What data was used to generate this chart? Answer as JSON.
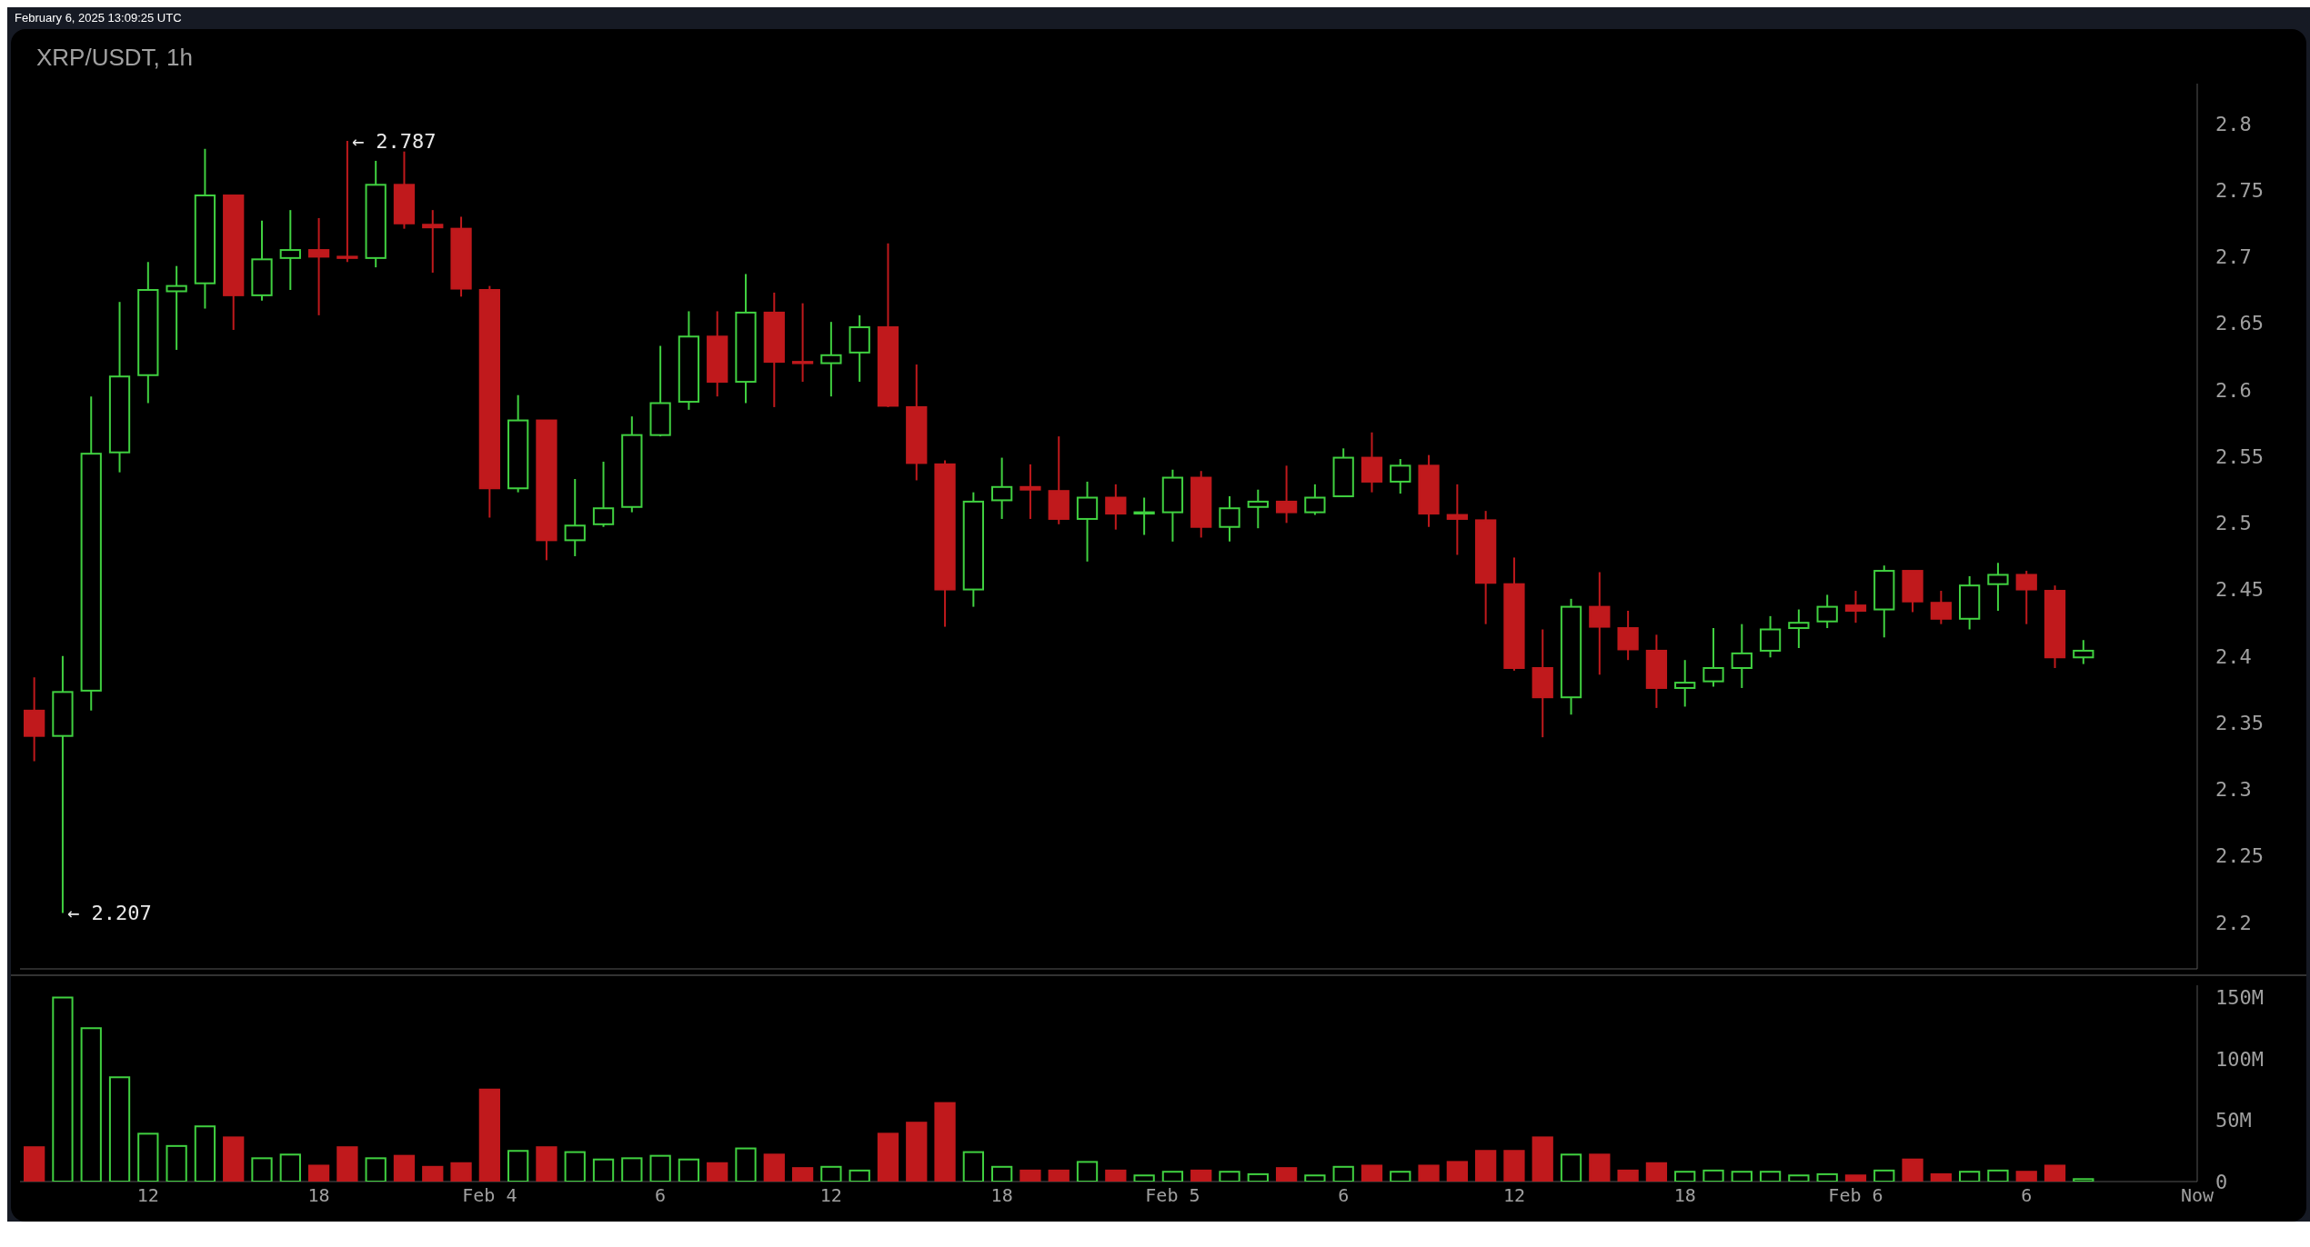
{
  "chart_data": [
    {
      "type": "candlestick",
      "title": "XRP/USDT, 1h",
      "annotations": [
        "February 6, 2025 13:09:25 UTC",
        {
          "text": "← 2.787",
          "x": "--02-03T19:00",
          "y": 2.787
        },
        {
          "text": "← 2.207",
          "x": "--02-03T09:00",
          "y": 2.207
        }
      ],
      "x": [
        "--02-03T08:00",
        "--02-03T09:00",
        "--02-03T10:00",
        "--02-03T11:00",
        "--02-03T12:00",
        "--02-03T13:00",
        "--02-03T14:00",
        "--02-03T15:00",
        "--02-03T16:00",
        "--02-03T17:00",
        "--02-03T18:00",
        "--02-03T19:00",
        "--02-03T20:00",
        "--02-03T21:00",
        "--02-03T22:00",
        "--02-03T23:00",
        "--02-04T00:00",
        "--02-04T01:00",
        "--02-04T02:00",
        "--02-04T03:00",
        "--02-04T04:00",
        "--02-04T05:00",
        "--02-04T06:00",
        "--02-04T07:00",
        "--02-04T08:00",
        "--02-04T09:00",
        "--02-04T10:00",
        "--02-04T11:00",
        "--02-04T12:00",
        "--02-04T13:00",
        "--02-04T14:00",
        "--02-04T15:00",
        "--02-04T16:00",
        "--02-04T17:00",
        "--02-04T18:00",
        "--02-04T19:00",
        "--02-04T20:00",
        "--02-04T21:00",
        "--02-04T22:00",
        "--02-04T23:00",
        "--02-05T00:00",
        "--02-05T01:00",
        "--02-05T02:00",
        "--02-05T03:00",
        "--02-05T04:00",
        "--02-05T05:00",
        "--02-05T06:00",
        "--02-05T07:00",
        "--02-05T08:00",
        "--02-05T09:00",
        "--02-05T10:00",
        "--02-05T11:00",
        "--02-05T12:00",
        "--02-05T13:00",
        "--02-05T14:00",
        "--02-05T15:00",
        "--02-05T16:00",
        "--02-05T17:00",
        "--02-05T18:00",
        "--02-05T19:00",
        "--02-05T20:00",
        "--02-05T21:00",
        "--02-05T22:00",
        "--02-05T23:00",
        "--02-06T00:00",
        "--02-06T01:00",
        "--02-06T02:00",
        "--02-06T03:00",
        "--02-06T04:00",
        "--02-06T05:00",
        "--02-06T06:00",
        "--02-06T07:00",
        "--02-06T08:00"
      ],
      "ohlc": [
        [
          2.359,
          2.384,
          2.321,
          2.34
        ],
        [
          2.34,
          2.4,
          2.207,
          2.373
        ],
        [
          2.374,
          2.595,
          2.359,
          2.552
        ],
        [
          2.553,
          2.666,
          2.538,
          2.61
        ],
        [
          2.611,
          2.696,
          2.59,
          2.675
        ],
        [
          2.674,
          2.693,
          2.63,
          2.678
        ],
        [
          2.68,
          2.781,
          2.661,
          2.746
        ],
        [
          2.746,
          2.746,
          2.645,
          2.671
        ],
        [
          2.671,
          2.727,
          2.667,
          2.698
        ],
        [
          2.699,
          2.735,
          2.675,
          2.705
        ],
        [
          2.705,
          2.729,
          2.656,
          2.7
        ],
        [
          2.7,
          2.787,
          2.696,
          2.699
        ],
        [
          2.699,
          2.772,
          2.692,
          2.754
        ],
        [
          2.754,
          2.779,
          2.721,
          2.725
        ],
        [
          2.724,
          2.735,
          2.688,
          2.722
        ],
        [
          2.721,
          2.73,
          2.67,
          2.676
        ],
        [
          2.675,
          2.678,
          2.504,
          2.526
        ],
        [
          2.526,
          2.596,
          2.523,
          2.577
        ],
        [
          2.577,
          2.577,
          2.472,
          2.487
        ],
        [
          2.487,
          2.533,
          2.475,
          2.498
        ],
        [
          2.499,
          2.546,
          2.497,
          2.511
        ],
        [
          2.512,
          2.58,
          2.508,
          2.566
        ],
        [
          2.566,
          2.633,
          2.565,
          2.59
        ],
        [
          2.591,
          2.659,
          2.585,
          2.64
        ],
        [
          2.64,
          2.659,
          2.595,
          2.606
        ],
        [
          2.606,
          2.687,
          2.59,
          2.658
        ],
        [
          2.658,
          2.673,
          2.587,
          2.621
        ],
        [
          2.621,
          2.665,
          2.606,
          2.62
        ],
        [
          2.62,
          2.651,
          2.595,
          2.626
        ],
        [
          2.628,
          2.656,
          2.606,
          2.647
        ],
        [
          2.647,
          2.71,
          2.587,
          2.588
        ],
        [
          2.587,
          2.619,
          2.532,
          2.545
        ],
        [
          2.544,
          2.547,
          2.422,
          2.45
        ],
        [
          2.45,
          2.523,
          2.437,
          2.516
        ],
        [
          2.517,
          2.549,
          2.503,
          2.527
        ],
        [
          2.527,
          2.544,
          2.503,
          2.525
        ],
        [
          2.524,
          2.565,
          2.499,
          2.503
        ],
        [
          2.503,
          2.531,
          2.471,
          2.519
        ],
        [
          2.519,
          2.529,
          2.495,
          2.507
        ],
        [
          2.507,
          2.519,
          2.491,
          2.508
        ],
        [
          2.508,
          2.54,
          2.486,
          2.534
        ],
        [
          2.534,
          2.539,
          2.489,
          2.497
        ],
        [
          2.497,
          2.52,
          2.486,
          2.511
        ],
        [
          2.512,
          2.525,
          2.496,
          2.516
        ],
        [
          2.516,
          2.543,
          2.5,
          2.508
        ],
        [
          2.508,
          2.529,
          2.506,
          2.519
        ],
        [
          2.52,
          2.556,
          2.52,
          2.549
        ],
        [
          2.549,
          2.568,
          2.523,
          2.531
        ],
        [
          2.531,
          2.548,
          2.522,
          2.543
        ],
        [
          2.543,
          2.551,
          2.497,
          2.507
        ],
        [
          2.506,
          2.529,
          2.476,
          2.503
        ],
        [
          2.502,
          2.509,
          2.424,
          2.455
        ],
        [
          2.454,
          2.474,
          2.389,
          2.391
        ],
        [
          2.391,
          2.42,
          2.339,
          2.369
        ],
        [
          2.369,
          2.443,
          2.356,
          2.437
        ],
        [
          2.437,
          2.463,
          2.386,
          2.422
        ],
        [
          2.421,
          2.434,
          2.397,
          2.405
        ],
        [
          2.404,
          2.416,
          2.361,
          2.376
        ],
        [
          2.376,
          2.397,
          2.362,
          2.38
        ],
        [
          2.381,
          2.421,
          2.377,
          2.391
        ],
        [
          2.391,
          2.424,
          2.376,
          2.402
        ],
        [
          2.404,
          2.43,
          2.399,
          2.42
        ],
        [
          2.421,
          2.435,
          2.406,
          2.425
        ],
        [
          2.426,
          2.446,
          2.421,
          2.437
        ],
        [
          2.438,
          2.449,
          2.425,
          2.434
        ],
        [
          2.435,
          2.468,
          2.414,
          2.464
        ],
        [
          2.464,
          2.464,
          2.433,
          2.441
        ],
        [
          2.44,
          2.449,
          2.424,
          2.428
        ],
        [
          2.428,
          2.46,
          2.42,
          2.453
        ],
        [
          2.454,
          2.47,
          2.434,
          2.461
        ],
        [
          2.461,
          2.464,
          2.424,
          2.45
        ],
        [
          2.449,
          2.453,
          2.391,
          2.399
        ],
        [
          2.399,
          2.412,
          2.394,
          2.404
        ]
      ],
      "colors": [
        "#c0191c",
        "#40d040",
        "#40d040",
        "#40d040",
        "#40d040",
        "#40d040",
        "#40d040",
        "#c0191c",
        "#40d040",
        "#40d040",
        "#c0191c",
        "#c0191c",
        "#40d040",
        "#c0191c",
        "#c0191c",
        "#c0191c",
        "#c0191c",
        "#40d040",
        "#c0191c",
        "#40d040",
        "#40d040",
        "#40d040",
        "#40d040",
        "#40d040",
        "#c0191c",
        "#40d040",
        "#c0191c",
        "#c0191c",
        "#40d040",
        "#40d040",
        "#c0191c",
        "#c0191c",
        "#c0191c",
        "#40d040",
        "#40d040",
        "#c0191c",
        "#c0191c",
        "#40d040",
        "#c0191c",
        "#40d040",
        "#40d040",
        "#c0191c",
        "#40d040",
        "#40d040",
        "#c0191c",
        "#40d040",
        "#40d040",
        "#c0191c",
        "#40d040",
        "#c0191c",
        "#c0191c",
        "#c0191c",
        "#c0191c",
        "#c0191c",
        "#40d040",
        "#c0191c",
        "#c0191c",
        "#c0191c",
        "#40d040",
        "#40d040",
        "#40d040",
        "#40d040",
        "#40d040",
        "#40d040",
        "#c0191c",
        "#40d040",
        "#c0191c",
        "#c0191c",
        "#40d040",
        "#40d040",
        "#c0191c",
        "#c0191c",
        "#40d040"
      ],
      "xlim": [
        "--02-03T07:30",
        "--02-06T12:00"
      ],
      "ylim": [
        2.165,
        2.83
      ],
      "yticks": [
        2.2,
        2.25,
        2.3,
        2.35,
        2.4,
        2.45,
        2.5,
        2.55,
        2.6,
        2.65,
        2.7,
        2.75,
        2.8
      ],
      "tick_labels": "y"
    },
    {
      "type": "bar",
      "x": [
        "--02-03T08:00",
        "--02-03T09:00",
        "--02-03T10:00",
        "--02-03T11:00",
        "--02-03T12:00",
        "--02-03T13:00",
        "--02-03T14:00",
        "--02-03T15:00",
        "--02-03T16:00",
        "--02-03T17:00",
        "--02-03T18:00",
        "--02-03T19:00",
        "--02-03T20:00",
        "--02-03T21:00",
        "--02-03T22:00",
        "--02-03T23:00",
        "--02-04T00:00",
        "--02-04T01:00",
        "--02-04T02:00",
        "--02-04T03:00",
        "--02-04T04:00",
        "--02-04T05:00",
        "--02-04T06:00",
        "--02-04T07:00",
        "--02-04T08:00",
        "--02-04T09:00",
        "--02-04T10:00",
        "--02-04T11:00",
        "--02-04T12:00",
        "--02-04T13:00",
        "--02-04T14:00",
        "--02-04T15:00",
        "--02-04T16:00",
        "--02-04T17:00",
        "--02-04T18:00",
        "--02-04T19:00",
        "--02-04T20:00",
        "--02-04T21:00",
        "--02-04T22:00",
        "--02-04T23:00",
        "--02-05T00:00",
        "--02-05T01:00",
        "--02-05T02:00",
        "--02-05T03:00",
        "--02-05T04:00",
        "--02-05T05:00",
        "--02-05T06:00",
        "--02-05T07:00",
        "--02-05T08:00",
        "--02-05T09:00",
        "--02-05T10:00",
        "--02-05T11:00",
        "--02-05T12:00",
        "--02-05T13:00",
        "--02-05T14:00",
        "--02-05T15:00",
        "--02-05T16:00",
        "--02-05T17:00",
        "--02-05T18:00",
        "--02-05T19:00",
        "--02-05T20:00",
        "--02-05T21:00",
        "--02-05T22:00",
        "--02-05T23:00",
        "--02-06T00:00",
        "--02-06T01:00",
        "--02-06T02:00",
        "--02-06T03:00",
        "--02-06T04:00",
        "--02-06T05:00",
        "--02-06T06:00",
        "--02-06T07:00",
        "--02-06T08:00"
      ],
      "values": [
        28,
        150,
        125,
        85,
        39,
        29,
        45,
        36,
        19,
        22,
        13,
        28,
        19,
        21,
        12,
        15,
        75,
        25,
        28,
        24,
        18,
        19,
        21,
        18,
        15,
        27,
        22,
        11,
        12,
        9,
        39,
        48,
        64,
        24,
        12,
        9,
        9,
        16,
        9,
        5,
        8,
        9,
        8,
        6,
        11,
        5,
        12,
        13,
        8,
        13,
        16,
        25,
        25,
        36,
        22,
        22,
        9,
        15,
        8,
        9,
        8,
        8,
        5,
        6,
        5,
        9,
        18,
        6,
        8,
        9,
        8,
        13,
        2
      ],
      "colors": [
        "#c0191c",
        "#40d040",
        "#40d040",
        "#40d040",
        "#40d040",
        "#40d040",
        "#40d040",
        "#c0191c",
        "#40d040",
        "#40d040",
        "#c0191c",
        "#c0191c",
        "#40d040",
        "#c0191c",
        "#c0191c",
        "#c0191c",
        "#c0191c",
        "#40d040",
        "#c0191c",
        "#40d040",
        "#40d040",
        "#40d040",
        "#40d040",
        "#40d040",
        "#c0191c",
        "#40d040",
        "#c0191c",
        "#c0191c",
        "#40d040",
        "#40d040",
        "#c0191c",
        "#c0191c",
        "#c0191c",
        "#40d040",
        "#40d040",
        "#c0191c",
        "#c0191c",
        "#40d040",
        "#c0191c",
        "#40d040",
        "#40d040",
        "#c0191c",
        "#40d040",
        "#40d040",
        "#c0191c",
        "#40d040",
        "#40d040",
        "#c0191c",
        "#40d040",
        "#c0191c",
        "#c0191c",
        "#c0191c",
        "#c0191c",
        "#c0191c",
        "#40d040",
        "#c0191c",
        "#c0191c",
        "#c0191c",
        "#40d040",
        "#40d040",
        "#40d040",
        "#40d040",
        "#40d040",
        "#40d040",
        "#c0191c",
        "#40d040",
        "#c0191c",
        "#c0191c",
        "#40d040",
        "#40d040",
        "#c0191c",
        "#c0191c",
        "#40d040"
      ],
      "xlim": [
        "--02-03T07:30",
        "--02-06T12:00"
      ],
      "xticks": [
        {
          "value": "--02-03T12:00",
          "label": "12"
        },
        {
          "value": "--02-03T18:00",
          "label": "18"
        },
        {
          "value": "--02-04T00:00",
          "label": "Feb 4"
        },
        {
          "value": "--02-04T06:00",
          "label": "6"
        },
        {
          "value": "--02-04T12:00",
          "label": "12"
        },
        {
          "value": "--02-04T18:00",
          "label": "18"
        },
        {
          "value": "--02-05T00:00",
          "label": "Feb 5"
        },
        {
          "value": "--02-05T06:00",
          "label": "6"
        },
        {
          "value": "--02-05T12:00",
          "label": "12"
        },
        {
          "value": "--02-05T18:00",
          "label": "18"
        },
        {
          "value": "--02-06T00:00",
          "label": "Feb 6"
        },
        {
          "value": "--02-06T06:00",
          "label": "6"
        },
        {
          "value": "--02-06T12:00",
          "label": "Now"
        }
      ],
      "ylim": [
        0,
        160
      ],
      "yticks": [
        0,
        {
          "value": 50,
          "label": "50M"
        },
        {
          "value": 100,
          "label": "100M"
        },
        {
          "value": 150,
          "label": "150M"
        }
      ]
    }
  ]
}
